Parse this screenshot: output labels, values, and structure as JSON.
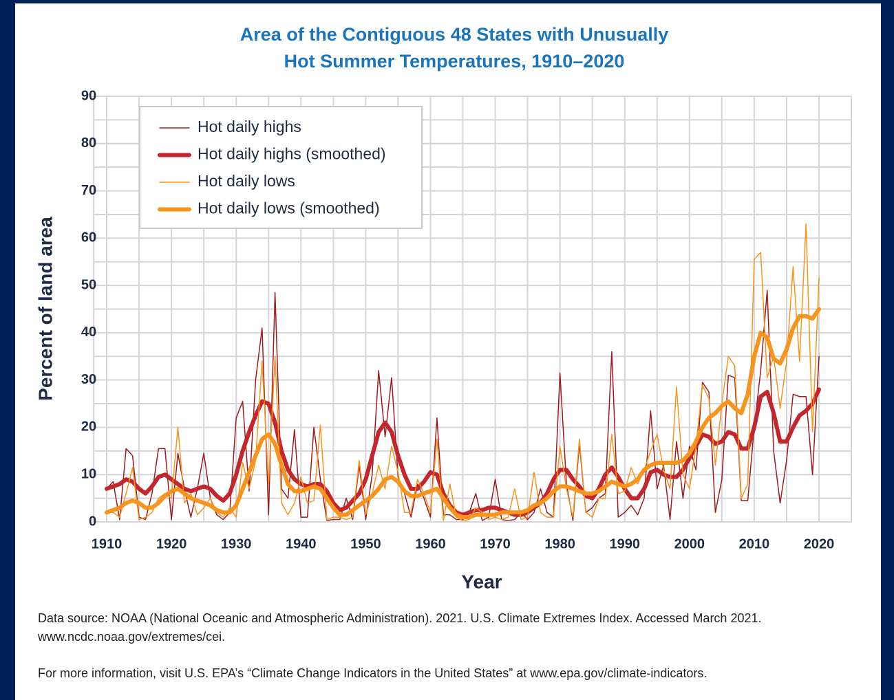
{
  "chart_data": {
    "type": "line",
    "title": [
      "Area of the Contiguous 48 States with Unusually",
      "Hot Summer Temperatures, 1910–2020"
    ],
    "xlabel": "Year",
    "ylabel": "Percent of land area",
    "notes": [
      "Data source: NOAA (National Oceanic and Atmospheric Administration). 2021. U.S. Climate Extremes Index. Accessed March 2021.",
      "www.ncdc.noaa.gov/extremes/cei.",
      "For more information, visit U.S. EPA’s “Climate Change Indicators in the United States” at www.epa.gov/climate-indicators."
    ],
    "x": [
      1910,
      1911,
      1912,
      1913,
      1914,
      1915,
      1916,
      1917,
      1918,
      1919,
      1920,
      1921,
      1922,
      1923,
      1924,
      1925,
      1926,
      1927,
      1928,
      1929,
      1930,
      1931,
      1932,
      1933,
      1934,
      1935,
      1936,
      1937,
      1938,
      1939,
      1940,
      1941,
      1942,
      1943,
      1944,
      1945,
      1946,
      1947,
      1948,
      1949,
      1950,
      1951,
      1952,
      1953,
      1954,
      1955,
      1956,
      1957,
      1958,
      1959,
      1960,
      1961,
      1962,
      1963,
      1964,
      1965,
      1966,
      1967,
      1968,
      1969,
      1970,
      1971,
      1972,
      1973,
      1974,
      1975,
      1976,
      1977,
      1978,
      1979,
      1980,
      1981,
      1982,
      1983,
      1984,
      1985,
      1986,
      1987,
      1988,
      1989,
      1990,
      1991,
      1992,
      1993,
      1994,
      1995,
      1996,
      1997,
      1998,
      1999,
      2000,
      2001,
      2002,
      2003,
      2004,
      2005,
      2006,
      2007,
      2008,
      2009,
      2010,
      2011,
      2012,
      2013,
      2014,
      2015,
      2016,
      2017,
      2018,
      2019,
      2020
    ],
    "series": [
      {
        "name": "Hot daily highs",
        "color": "#9e1b20",
        "linewidth": 1.5,
        "values": [
          7,
          8.5,
          0.5,
          15.5,
          14,
          1,
          0.5,
          6,
          15.5,
          15.5,
          0.5,
          14.5,
          7,
          1,
          7,
          14.5,
          5,
          1.5,
          0.5,
          2,
          22,
          25.5,
          6.5,
          30,
          41,
          1.5,
          48.5,
          7,
          5,
          19.5,
          1,
          1,
          20,
          9,
          0.3,
          0.5,
          0.5,
          5,
          0.5,
          12,
          0.5,
          10,
          32,
          18,
          30.5,
          9.5,
          6,
          1,
          8,
          5,
          1,
          22,
          1.5,
          1.5,
          0.5,
          0.5,
          2,
          6,
          0.3,
          1,
          9,
          0.5,
          0.3,
          0.5,
          2,
          0.5,
          2,
          7,
          2,
          1,
          31.5,
          8,
          0.3,
          16.5,
          2,
          3,
          5,
          6,
          36,
          1,
          2,
          3.5,
          1.5,
          5,
          23.5,
          7,
          12,
          0.5,
          17,
          5,
          16,
          11,
          29.5,
          27.5,
          2,
          9,
          31,
          30.5,
          4.5,
          4.5,
          20,
          32,
          49,
          15,
          4,
          13,
          27,
          26.5,
          26.5,
          10,
          35
        ]
      },
      {
        "name": "Hot daily highs (smoothed)",
        "color": "#c1272d",
        "linewidth": 6,
        "values": [
          7,
          7.5,
          8,
          9,
          8.5,
          7,
          6,
          7.5,
          9.5,
          10,
          9,
          8,
          7,
          6.5,
          7,
          7.5,
          7,
          5.5,
          4.5,
          6,
          10,
          15,
          19,
          22.5,
          25.5,
          25,
          21,
          15,
          11,
          9,
          8,
          7.5,
          8,
          8,
          6.5,
          4,
          2.5,
          3,
          4.5,
          6,
          9,
          14,
          19,
          21,
          19,
          14,
          10,
          7,
          7,
          8.5,
          10.5,
          10,
          6,
          3.5,
          2,
          1.5,
          2,
          2.5,
          2.5,
          3,
          3,
          2.5,
          2,
          1.5,
          1.5,
          2,
          3,
          4,
          6,
          9,
          11,
          11,
          9,
          7.5,
          5.5,
          5,
          7,
          10,
          11.5,
          9.5,
          7,
          5,
          5,
          7,
          10.5,
          11,
          10,
          9.5,
          9.5,
          11,
          13.5,
          16,
          18.5,
          18,
          16.5,
          17,
          19,
          18.5,
          15.5,
          15.5,
          20,
          26.5,
          27.5,
          23,
          17,
          17,
          20,
          22.5,
          23.5,
          25,
          28
        ]
      },
      {
        "name": "Hot daily lows",
        "color": "#f7941d",
        "linewidth": 1.5,
        "values": [
          2,
          2,
          1,
          6,
          11.5,
          0.5,
          1,
          2,
          5,
          6,
          5,
          20,
          4,
          6,
          1.5,
          3,
          5,
          2,
          1,
          3,
          1,
          12.5,
          7,
          13,
          34,
          8,
          35,
          4,
          1.5,
          4,
          9.5,
          4,
          4.5,
          20.5,
          0.5,
          1,
          1,
          0.5,
          1,
          13,
          1.5,
          6,
          12,
          7,
          16,
          10.5,
          2,
          2,
          9,
          6,
          2,
          17.5,
          0.3,
          8,
          1,
          0.3,
          0.5,
          3,
          2,
          0.5,
          1,
          0.5,
          1,
          7,
          0.5,
          1,
          10.5,
          2,
          1,
          1,
          16,
          7,
          1,
          17.5,
          2,
          1,
          5,
          5,
          18.5,
          6,
          6.5,
          11.5,
          8,
          11,
          15,
          18.5,
          11,
          7,
          28.5,
          10,
          7,
          16,
          29,
          26,
          12,
          25,
          35,
          33,
          5,
          8,
          55.5,
          57,
          30.5,
          35,
          24,
          34,
          54,
          34,
          63,
          19,
          51.5
        ]
      },
      {
        "name": "Hot daily lows (smoothed)",
        "color": "#f7941d",
        "linewidth": 6,
        "values": [
          2,
          2.5,
          3,
          4,
          4.5,
          4,
          3,
          3,
          4,
          5.5,
          6.5,
          7,
          6,
          5,
          4.5,
          4,
          3.5,
          2.5,
          2,
          2,
          3.5,
          7,
          10.5,
          14,
          17.5,
          18.5,
          16.5,
          12,
          8,
          6.5,
          6.5,
          7,
          7.5,
          7,
          5,
          3,
          1.5,
          1.5,
          2.5,
          3.5,
          4.5,
          5.5,
          7,
          9,
          9.5,
          8.5,
          6.5,
          5.5,
          5.5,
          6,
          6.5,
          7,
          5,
          3,
          1.5,
          1,
          1,
          1.5,
          1.5,
          1.5,
          1.5,
          2,
          2,
          2,
          2,
          2.5,
          3.5,
          4,
          5,
          6.5,
          7.5,
          7.5,
          7,
          6.5,
          6,
          6,
          6.5,
          7.5,
          8.5,
          8,
          7.5,
          8,
          9,
          11,
          12,
          12.5,
          12.5,
          12.5,
          12.5,
          13,
          14.5,
          17,
          20,
          22,
          23,
          24.5,
          25.5,
          24,
          23,
          27,
          35,
          40,
          39,
          34.5,
          33.5,
          36.5,
          41,
          43.5,
          43.5,
          43,
          45
        ]
      }
    ],
    "xlim": [
      1908,
      2025
    ],
    "xticks": [
      1910,
      1920,
      1930,
      1940,
      1950,
      1960,
      1970,
      1980,
      1990,
      2000,
      2010,
      2020
    ],
    "xminor": [
      1915,
      1925,
      1935,
      1945,
      1955,
      1965,
      1975,
      1985,
      1995,
      2005,
      2015,
      2025
    ],
    "ylim": [
      0,
      90
    ],
    "yticks": [
      0,
      10,
      20,
      30,
      40,
      50,
      60,
      70,
      80,
      90
    ],
    "yminor": [
      5,
      15,
      25,
      35,
      45,
      55,
      65,
      75,
      85
    ],
    "grid": true,
    "legend": "upper left"
  }
}
